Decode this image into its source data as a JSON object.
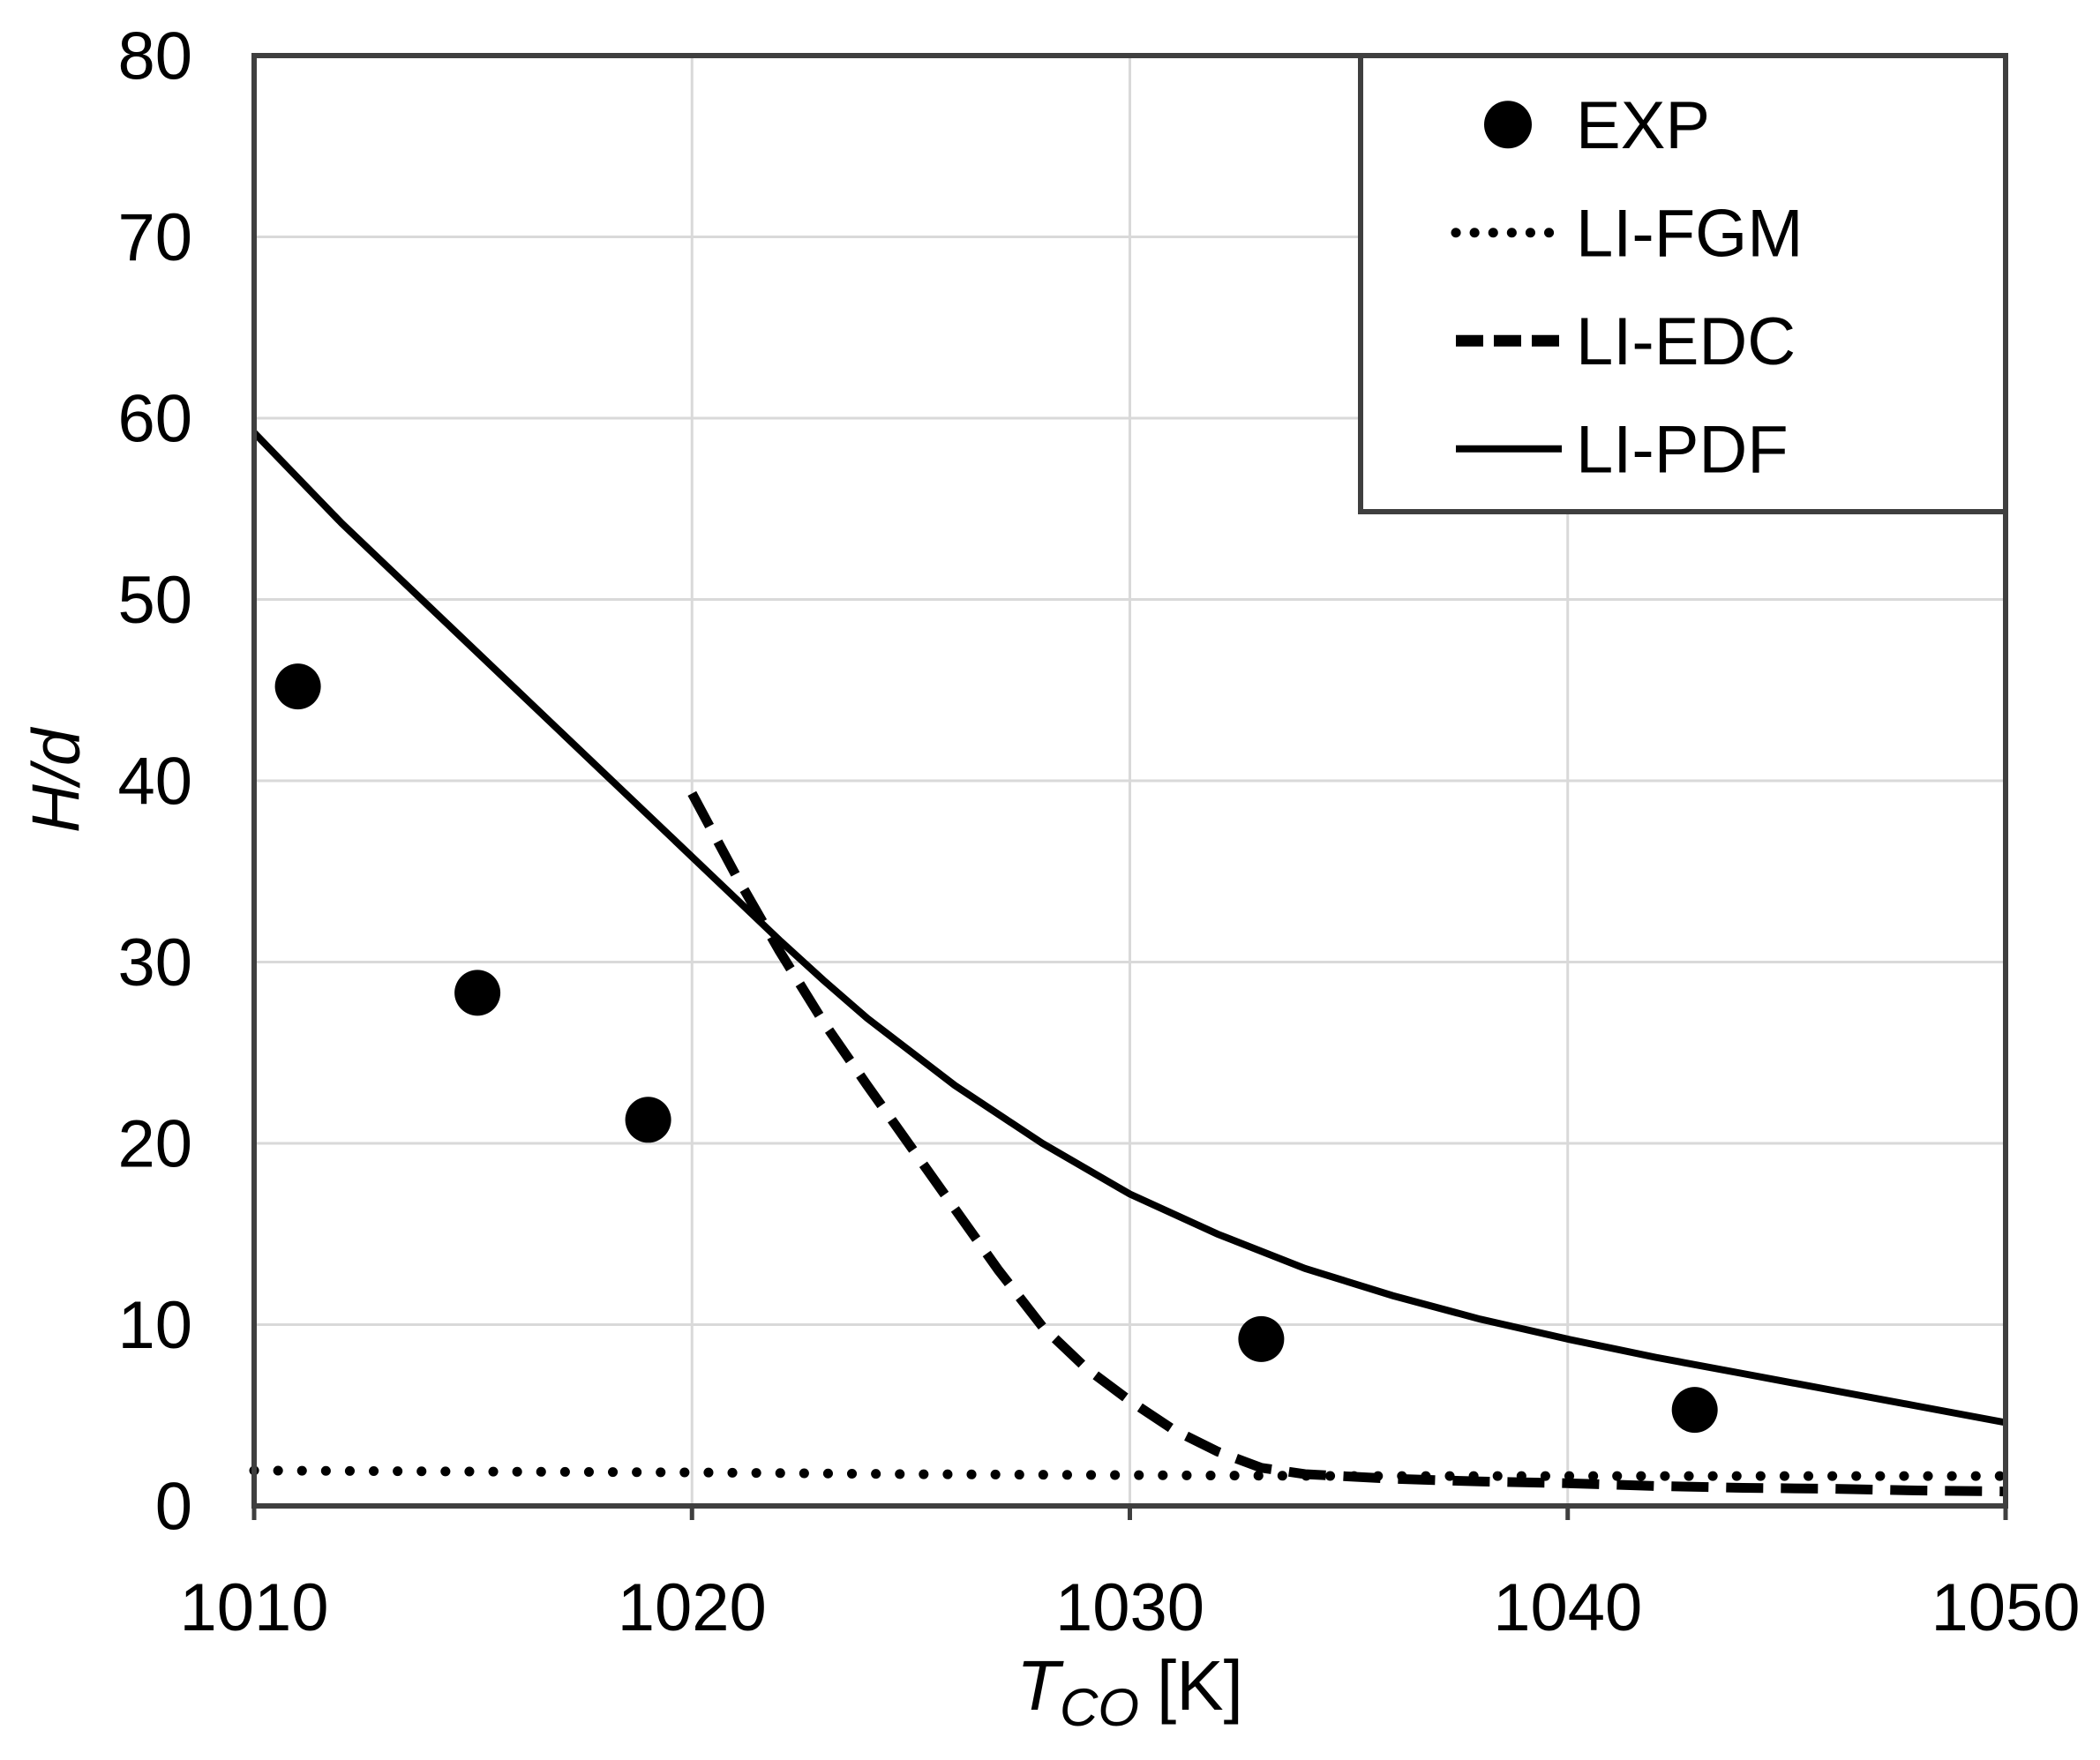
{
  "figure": {
    "background": "#ffffff",
    "axis_color": "#3f3f3f",
    "grid_color": "#d9d9d9",
    "line_color": "#000000",
    "text_color": "#000000"
  },
  "chart_data": {
    "type": "line",
    "title": "",
    "xlabel": {
      "symbol": "T",
      "subscript": "CO",
      "unit": "[K]"
    },
    "ylabel": "H/d",
    "xlim": [
      1010,
      1050
    ],
    "ylim": [
      0,
      80
    ],
    "x_ticks": [
      1010,
      1020,
      1030,
      1040,
      1050
    ],
    "y_ticks": [
      0,
      10,
      20,
      30,
      40,
      50,
      60,
      70,
      80
    ],
    "grid": true,
    "legend_position": "top-right",
    "series": [
      {
        "name": "EXP",
        "style": "scatter",
        "marker": "circle",
        "points": [
          [
            1011,
            45.2
          ],
          [
            1015.1,
            28.3
          ],
          [
            1019,
            21.3
          ],
          [
            1033,
            9.2
          ],
          [
            1042.9,
            5.3
          ]
        ]
      },
      {
        "name": "LI-FGM",
        "style": "dotted",
        "points": [
          [
            1010,
            1.95
          ],
          [
            1015,
            1.9
          ],
          [
            1020,
            1.85
          ],
          [
            1025,
            1.75
          ],
          [
            1030,
            1.7
          ],
          [
            1035,
            1.65
          ],
          [
            1040,
            1.65
          ],
          [
            1045,
            1.65
          ],
          [
            1050,
            1.65
          ]
        ]
      },
      {
        "name": "LI-EDC",
        "style": "dashed",
        "points": [
          [
            1020,
            39.3
          ],
          [
            1021,
            34.8
          ],
          [
            1022,
            30.6
          ],
          [
            1023,
            26.7
          ],
          [
            1024,
            23.2
          ],
          [
            1025,
            19.8
          ],
          [
            1026,
            16.4
          ],
          [
            1027,
            13.0
          ],
          [
            1028,
            9.9
          ],
          [
            1029,
            7.6
          ],
          [
            1030,
            5.8
          ],
          [
            1031,
            4.2
          ],
          [
            1032,
            3.0
          ],
          [
            1033,
            2.1
          ],
          [
            1034,
            1.75
          ],
          [
            1036,
            1.5
          ],
          [
            1038,
            1.35
          ],
          [
            1040,
            1.25
          ],
          [
            1042,
            1.1
          ],
          [
            1044,
            1.0
          ],
          [
            1046,
            0.95
          ],
          [
            1048,
            0.85
          ],
          [
            1050,
            0.8
          ]
        ]
      },
      {
        "name": "LI-PDF",
        "style": "solid",
        "points": [
          [
            1010,
            59.2
          ],
          [
            1012,
            54.2
          ],
          [
            1014,
            49.6
          ],
          [
            1016,
            45.0
          ],
          [
            1018,
            40.4
          ],
          [
            1020,
            35.8
          ],
          [
            1022,
            31.2
          ],
          [
            1023,
            29.0
          ],
          [
            1024,
            26.9
          ],
          [
            1026,
            23.2
          ],
          [
            1028,
            20.0
          ],
          [
            1030,
            17.2
          ],
          [
            1032,
            15.0
          ],
          [
            1034,
            13.1
          ],
          [
            1036,
            11.6
          ],
          [
            1038,
            10.3
          ],
          [
            1040,
            9.2
          ],
          [
            1042,
            8.2
          ],
          [
            1044,
            7.3
          ],
          [
            1046,
            6.4
          ],
          [
            1048,
            5.5
          ],
          [
            1050,
            4.6
          ]
        ]
      }
    ],
    "legend_entries": [
      "EXP",
      "LI-FGM",
      "LI-EDC",
      "LI-PDF"
    ]
  }
}
